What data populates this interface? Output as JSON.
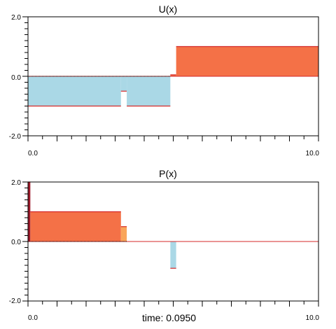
{
  "time": {
    "label": "time:",
    "value": "0.0950"
  },
  "colors": {
    "positive_fill": "#f47147",
    "negative_fill": "#aad8e6",
    "edge": "#d42a2a",
    "dark_red": "#9c1a2a",
    "light_orange": "#f9a55a",
    "baseline": "#000000"
  },
  "chart_data": [
    {
      "type": "bar",
      "title": "U(x)",
      "xlim": [
        0.0,
        10.0
      ],
      "ylim": [
        -2.0,
        2.0
      ],
      "x_tick_labels": [
        "0.0",
        "10.0"
      ],
      "y_tick_labels": [
        "2.0",
        "0.0",
        "-2.0"
      ],
      "grid": false,
      "segments": [
        {
          "x0": 0.0,
          "x1": 3.2,
          "value": -1.0
        },
        {
          "x0": 3.2,
          "x1": 3.4,
          "value": -0.5
        },
        {
          "x0": 3.4,
          "x1": 4.9,
          "value": -1.0
        },
        {
          "x0": 4.9,
          "x1": 5.1,
          "value": 0.05
        },
        {
          "x0": 5.1,
          "x1": 10.0,
          "value": 1.0
        }
      ]
    },
    {
      "type": "bar",
      "title": "P(x)",
      "xlim": [
        0.0,
        10.0
      ],
      "ylim": [
        -2.0,
        2.0
      ],
      "x_tick_labels": [
        "0.0",
        "10.0"
      ],
      "y_tick_labels": [
        "2.0",
        "0.0",
        "-2.0"
      ],
      "grid": false,
      "segments": [
        {
          "x0": 0.0,
          "x1": 0.08,
          "value": 2.0
        },
        {
          "x0": 0.08,
          "x1": 3.2,
          "value": 1.0
        },
        {
          "x0": 3.2,
          "x1": 3.4,
          "value": 0.5
        },
        {
          "x0": 3.4,
          "x1": 4.9,
          "value": 0.0
        },
        {
          "x0": 4.9,
          "x1": 5.1,
          "value": -0.9
        },
        {
          "x0": 5.1,
          "x1": 10.0,
          "value": 0.0
        }
      ]
    }
  ]
}
